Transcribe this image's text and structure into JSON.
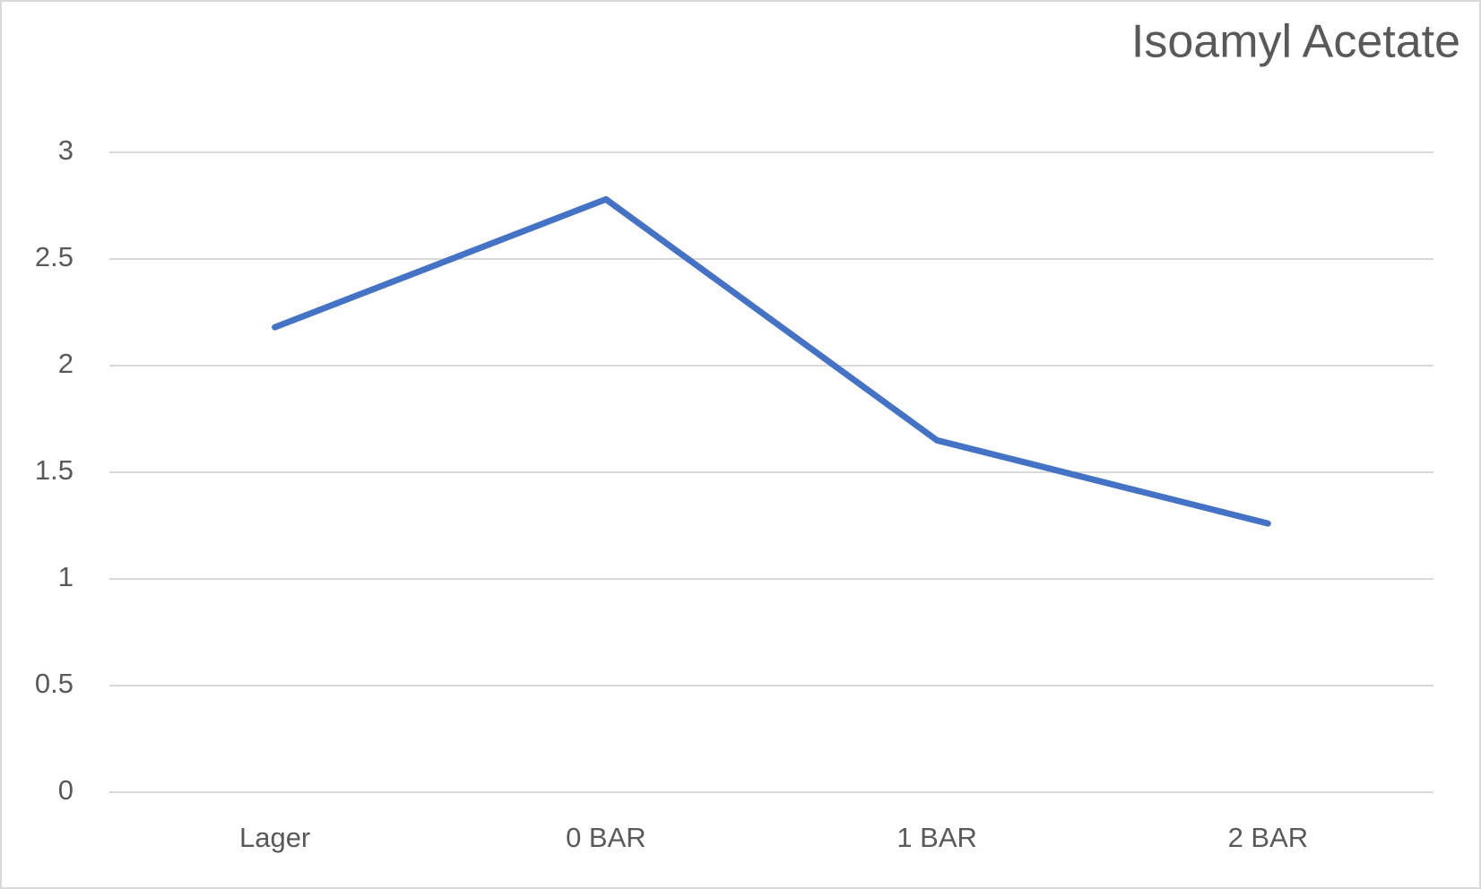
{
  "chart_data": {
    "type": "line",
    "title": "Isoamyl Acetate",
    "categories": [
      "Lager",
      "0 BAR",
      "1 BAR",
      "2 BAR"
    ],
    "values": [
      2.18,
      2.78,
      1.65,
      1.26
    ],
    "color": "#4472c4",
    "ylim": [
      0,
      3
    ],
    "yticks": [
      0,
      0.5,
      1,
      1.5,
      2,
      2.5,
      3
    ],
    "grid": true
  }
}
